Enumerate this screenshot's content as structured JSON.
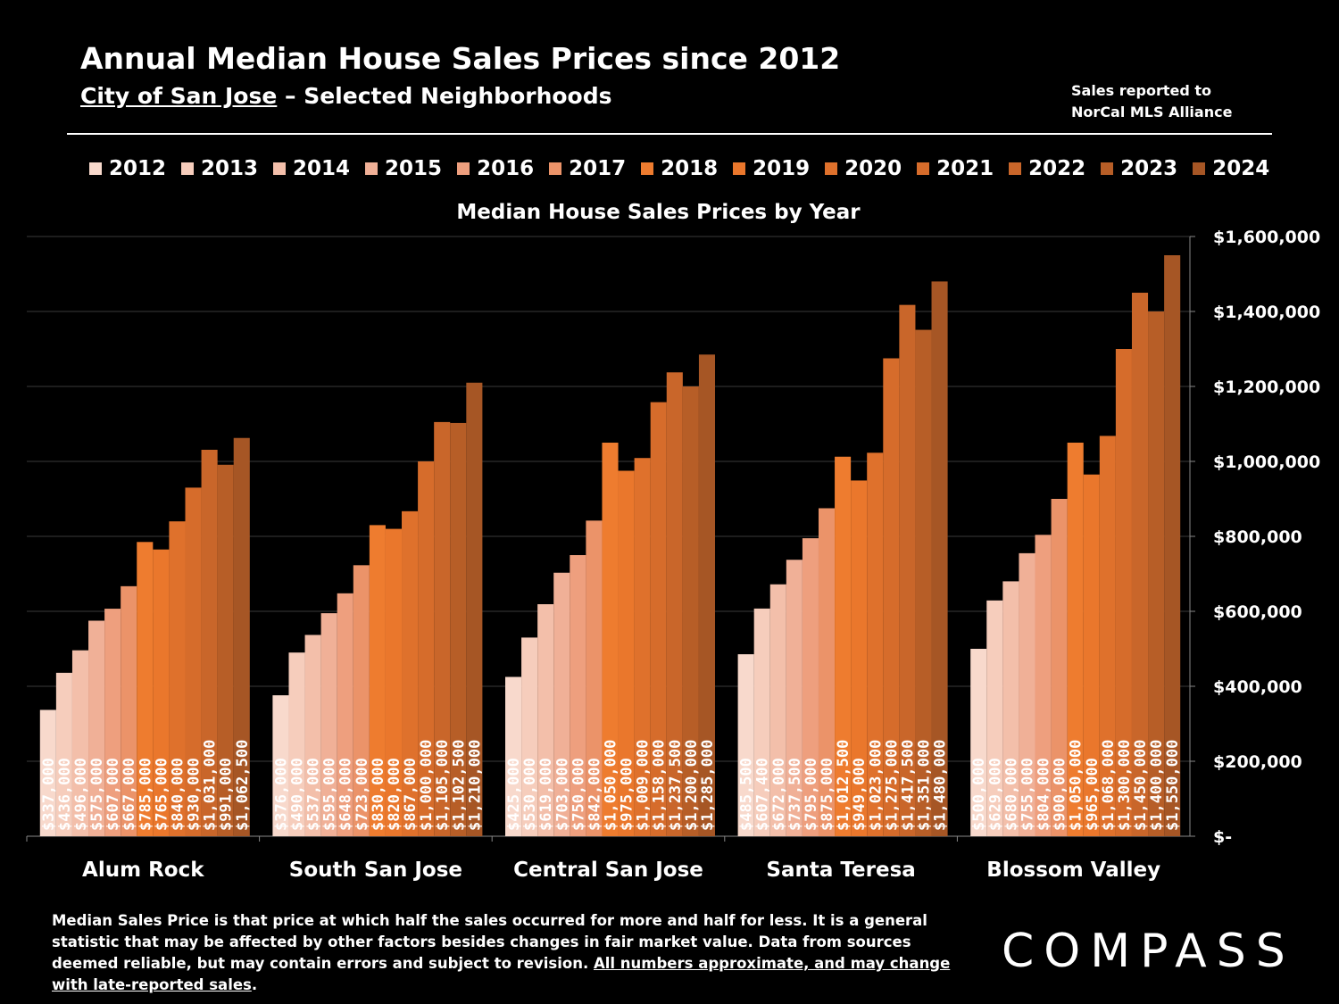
{
  "header": {
    "title": "Annual Median House Sales Prices since 2012",
    "subtitle_link": "City of San Jose",
    "subtitle_rest": " – Selected Neighborhoods",
    "source_line1": "Sales reported to",
    "source_line2": "NorCal MLS Alliance"
  },
  "footnote": {
    "text": "Median Sales Price is that price at which half the sales occurred for more and half for less. It is a general statistic that may be affected by other factors besides changes in fair market value. Data from sources deemed reliable, but may contain errors and subject to revision.  ",
    "underlined": "All numbers approximate, and may change with late-reported sales",
    "end": "."
  },
  "logo": {
    "text": "COMPASS"
  },
  "colors": {
    "background": "#000000",
    "series": [
      "#f8d9cc",
      "#f6cdbc",
      "#f3bfaa",
      "#f0b097",
      "#ee9f7e",
      "#eb9369",
      "#ee7c2f",
      "#ea772c",
      "#df712c",
      "#d66c2b",
      "#c9662a",
      "#b75e27",
      "#a65625"
    ]
  },
  "chart_data": {
    "type": "bar",
    "title": "Median House Sales Prices by Year",
    "categories": [
      "Alum Rock",
      "South San Jose",
      "Central San Jose",
      "Santa Teresa",
      "Blossom Valley"
    ],
    "ylim": [
      0,
      1600000
    ],
    "yticks": [
      0,
      200000,
      400000,
      600000,
      800000,
      1000000,
      1200000,
      1400000,
      1600000
    ],
    "ytick_labels": [
      "$-",
      "$200,000",
      "$400,000",
      "$600,000",
      "$800,000",
      "$1,000,000",
      "$1,200,000",
      "$1,400,000",
      "$1,600,000"
    ],
    "legend_position": "top",
    "grid": true,
    "series": [
      {
        "name": "2012",
        "values": [
          337000,
          376000,
          425000,
          485500,
          500000
        ],
        "labels": [
          "$337,000",
          "$376,000",
          "$425,000",
          "$485,500",
          "$500,000"
        ]
      },
      {
        "name": "2013",
        "values": [
          436000,
          490000,
          530000,
          607400,
          629000
        ],
        "labels": [
          "$436,000",
          "$490,000",
          "$530,000",
          "$607,400",
          "$629,000"
        ]
      },
      {
        "name": "2014",
        "values": [
          496000,
          537000,
          619000,
          672000,
          680000
        ],
        "labels": [
          "$496,000",
          "$537,000",
          "$619,000",
          "$672,000",
          "$680,000"
        ]
      },
      {
        "name": "2015",
        "values": [
          575000,
          595000,
          703000,
          737500,
          755000
        ],
        "labels": [
          "$575,000",
          "$595,000",
          "$703,000",
          "$737,500",
          "$755,000"
        ]
      },
      {
        "name": "2016",
        "values": [
          607000,
          648000,
          750000,
          795000,
          804000
        ],
        "labels": [
          "$607,000",
          "$648,000",
          "$750,000",
          "$795,000",
          "$804,000"
        ]
      },
      {
        "name": "2017",
        "values": [
          667000,
          723000,
          842000,
          875000,
          900000
        ],
        "labels": [
          "$667,000",
          "$723,000",
          "$842,000",
          "$875,000",
          "$900,000"
        ]
      },
      {
        "name": "2018",
        "values": [
          785000,
          830000,
          1050000,
          1012500,
          1050000
        ],
        "labels": [
          "$785,000",
          "$830,000",
          "$1,050,000",
          "$1,012,500",
          "$1,050,000"
        ]
      },
      {
        "name": "2019",
        "values": [
          765000,
          820000,
          975000,
          949000,
          965000
        ],
        "labels": [
          "$765,000",
          "$820,000",
          "$975,000",
          "$949,000",
          "$965,000"
        ]
      },
      {
        "name": "2020",
        "values": [
          840000,
          867000,
          1009000,
          1023000,
          1068000
        ],
        "labels": [
          "$840,000",
          "$867,000",
          "$1,009,000",
          "$1,023,000",
          "$1,068,000"
        ]
      },
      {
        "name": "2021",
        "values": [
          930000,
          1000000,
          1158000,
          1275000,
          1300000
        ],
        "labels": [
          "$930,000",
          "$1,000,000",
          "$1,158,000",
          "$1,275,000",
          "$1,300,000"
        ]
      },
      {
        "name": "2022",
        "values": [
          1031000,
          1105000,
          1237500,
          1417500,
          1450000
        ],
        "labels": [
          "$1,031,000",
          "$1,105,000",
          "$1,237,500",
          "$1,417,500",
          "$1,450,000"
        ]
      },
      {
        "name": "2023",
        "values": [
          991000,
          1102500,
          1200000,
          1351000,
          1400000
        ],
        "labels": [
          "$991,000",
          "$1,102,500",
          "$1,200,000",
          "$1,351,000",
          "$1,400,000"
        ]
      },
      {
        "name": "2024",
        "values": [
          1062500,
          1210000,
          1285000,
          1480000,
          1550000
        ],
        "labels": [
          "$1,062,500",
          "$1,210,000",
          "$1,285,000",
          "$1,480,000",
          "$1,550,000"
        ]
      }
    ]
  }
}
